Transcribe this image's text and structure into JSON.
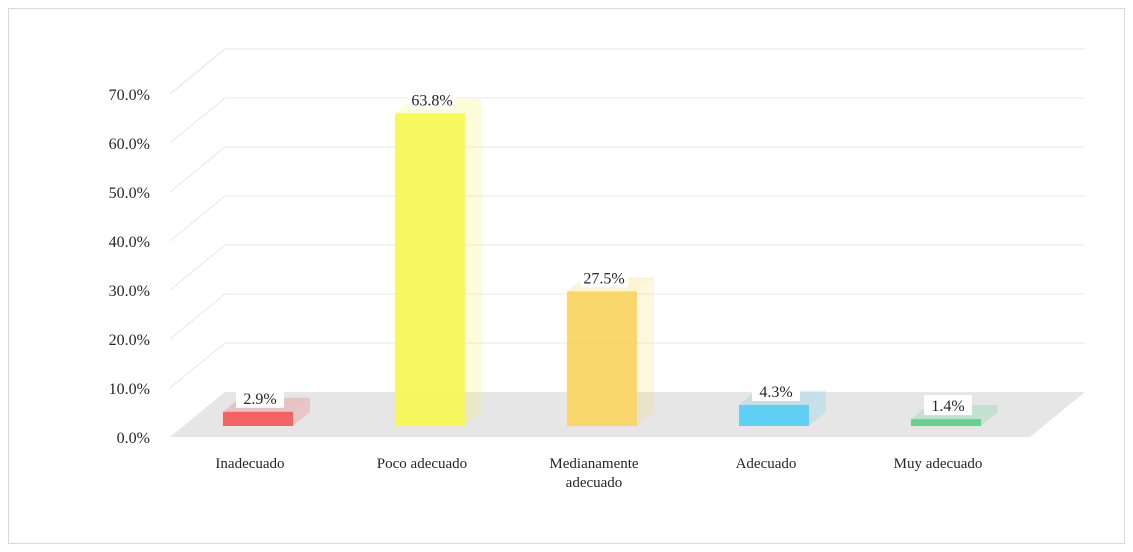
{
  "chart_data": {
    "type": "bar",
    "title": "",
    "xlabel": "",
    "ylabel": "",
    "categories": [
      "Inadecuado",
      "Poco adecuado",
      "Medianamente adecuado",
      "Adecuado",
      "Muy adecuado"
    ],
    "category_lines": [
      [
        "Inadecuado"
      ],
      [
        "Poco adecuado"
      ],
      [
        "Medianamente",
        "adecuado"
      ],
      [
        "Adecuado"
      ],
      [
        "Muy adecuado"
      ]
    ],
    "values": [
      2.9,
      63.8,
      27.5,
      4.3,
      1.4
    ],
    "data_labels": [
      "2.9%",
      "63.8%",
      "27.5%",
      "4.3%",
      "1.4%"
    ],
    "ylim": [
      0,
      70
    ],
    "yticks": [
      0,
      10,
      20,
      30,
      40,
      50,
      60,
      70
    ],
    "ytick_labels": [
      "0.0%",
      "10.0%",
      "20.0%",
      "30.0%",
      "40.0%",
      "50.0%",
      "60.0%",
      "70.0%"
    ],
    "grid": true,
    "legend": "none",
    "style": "3d-column",
    "colors": [
      "#f25c5c",
      "#f7f757",
      "#f9d564",
      "#5bcdf4",
      "#5fce8c"
    ]
  }
}
